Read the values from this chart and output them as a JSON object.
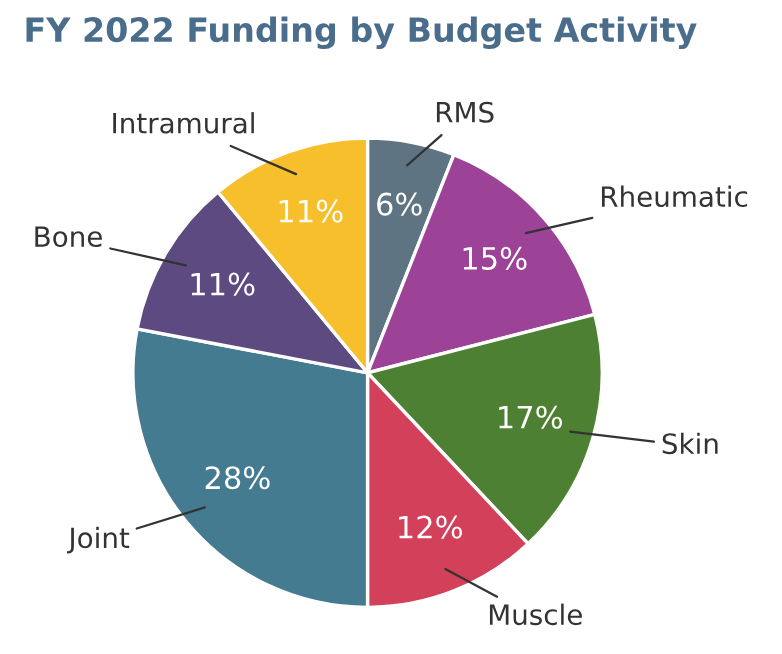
{
  "chart_data": {
    "type": "pie",
    "title": "FY 2022 Funding by Budget Activity",
    "categories": [
      "RMS",
      "Rheumatic",
      "Skin",
      "Muscle",
      "Joint",
      "Bone",
      "Intramural"
    ],
    "values": [
      6,
      15,
      17,
      12,
      28,
      11,
      11
    ],
    "value_labels": [
      "6%",
      "15%",
      "17%",
      "12%",
      "28%",
      "11%",
      "11%"
    ],
    "colors": [
      "#5f7483",
      "#9c4398",
      "#4e8034",
      "#d2405a",
      "#447b90",
      "#5d4a80",
      "#f6bf2b"
    ],
    "legend": false
  }
}
